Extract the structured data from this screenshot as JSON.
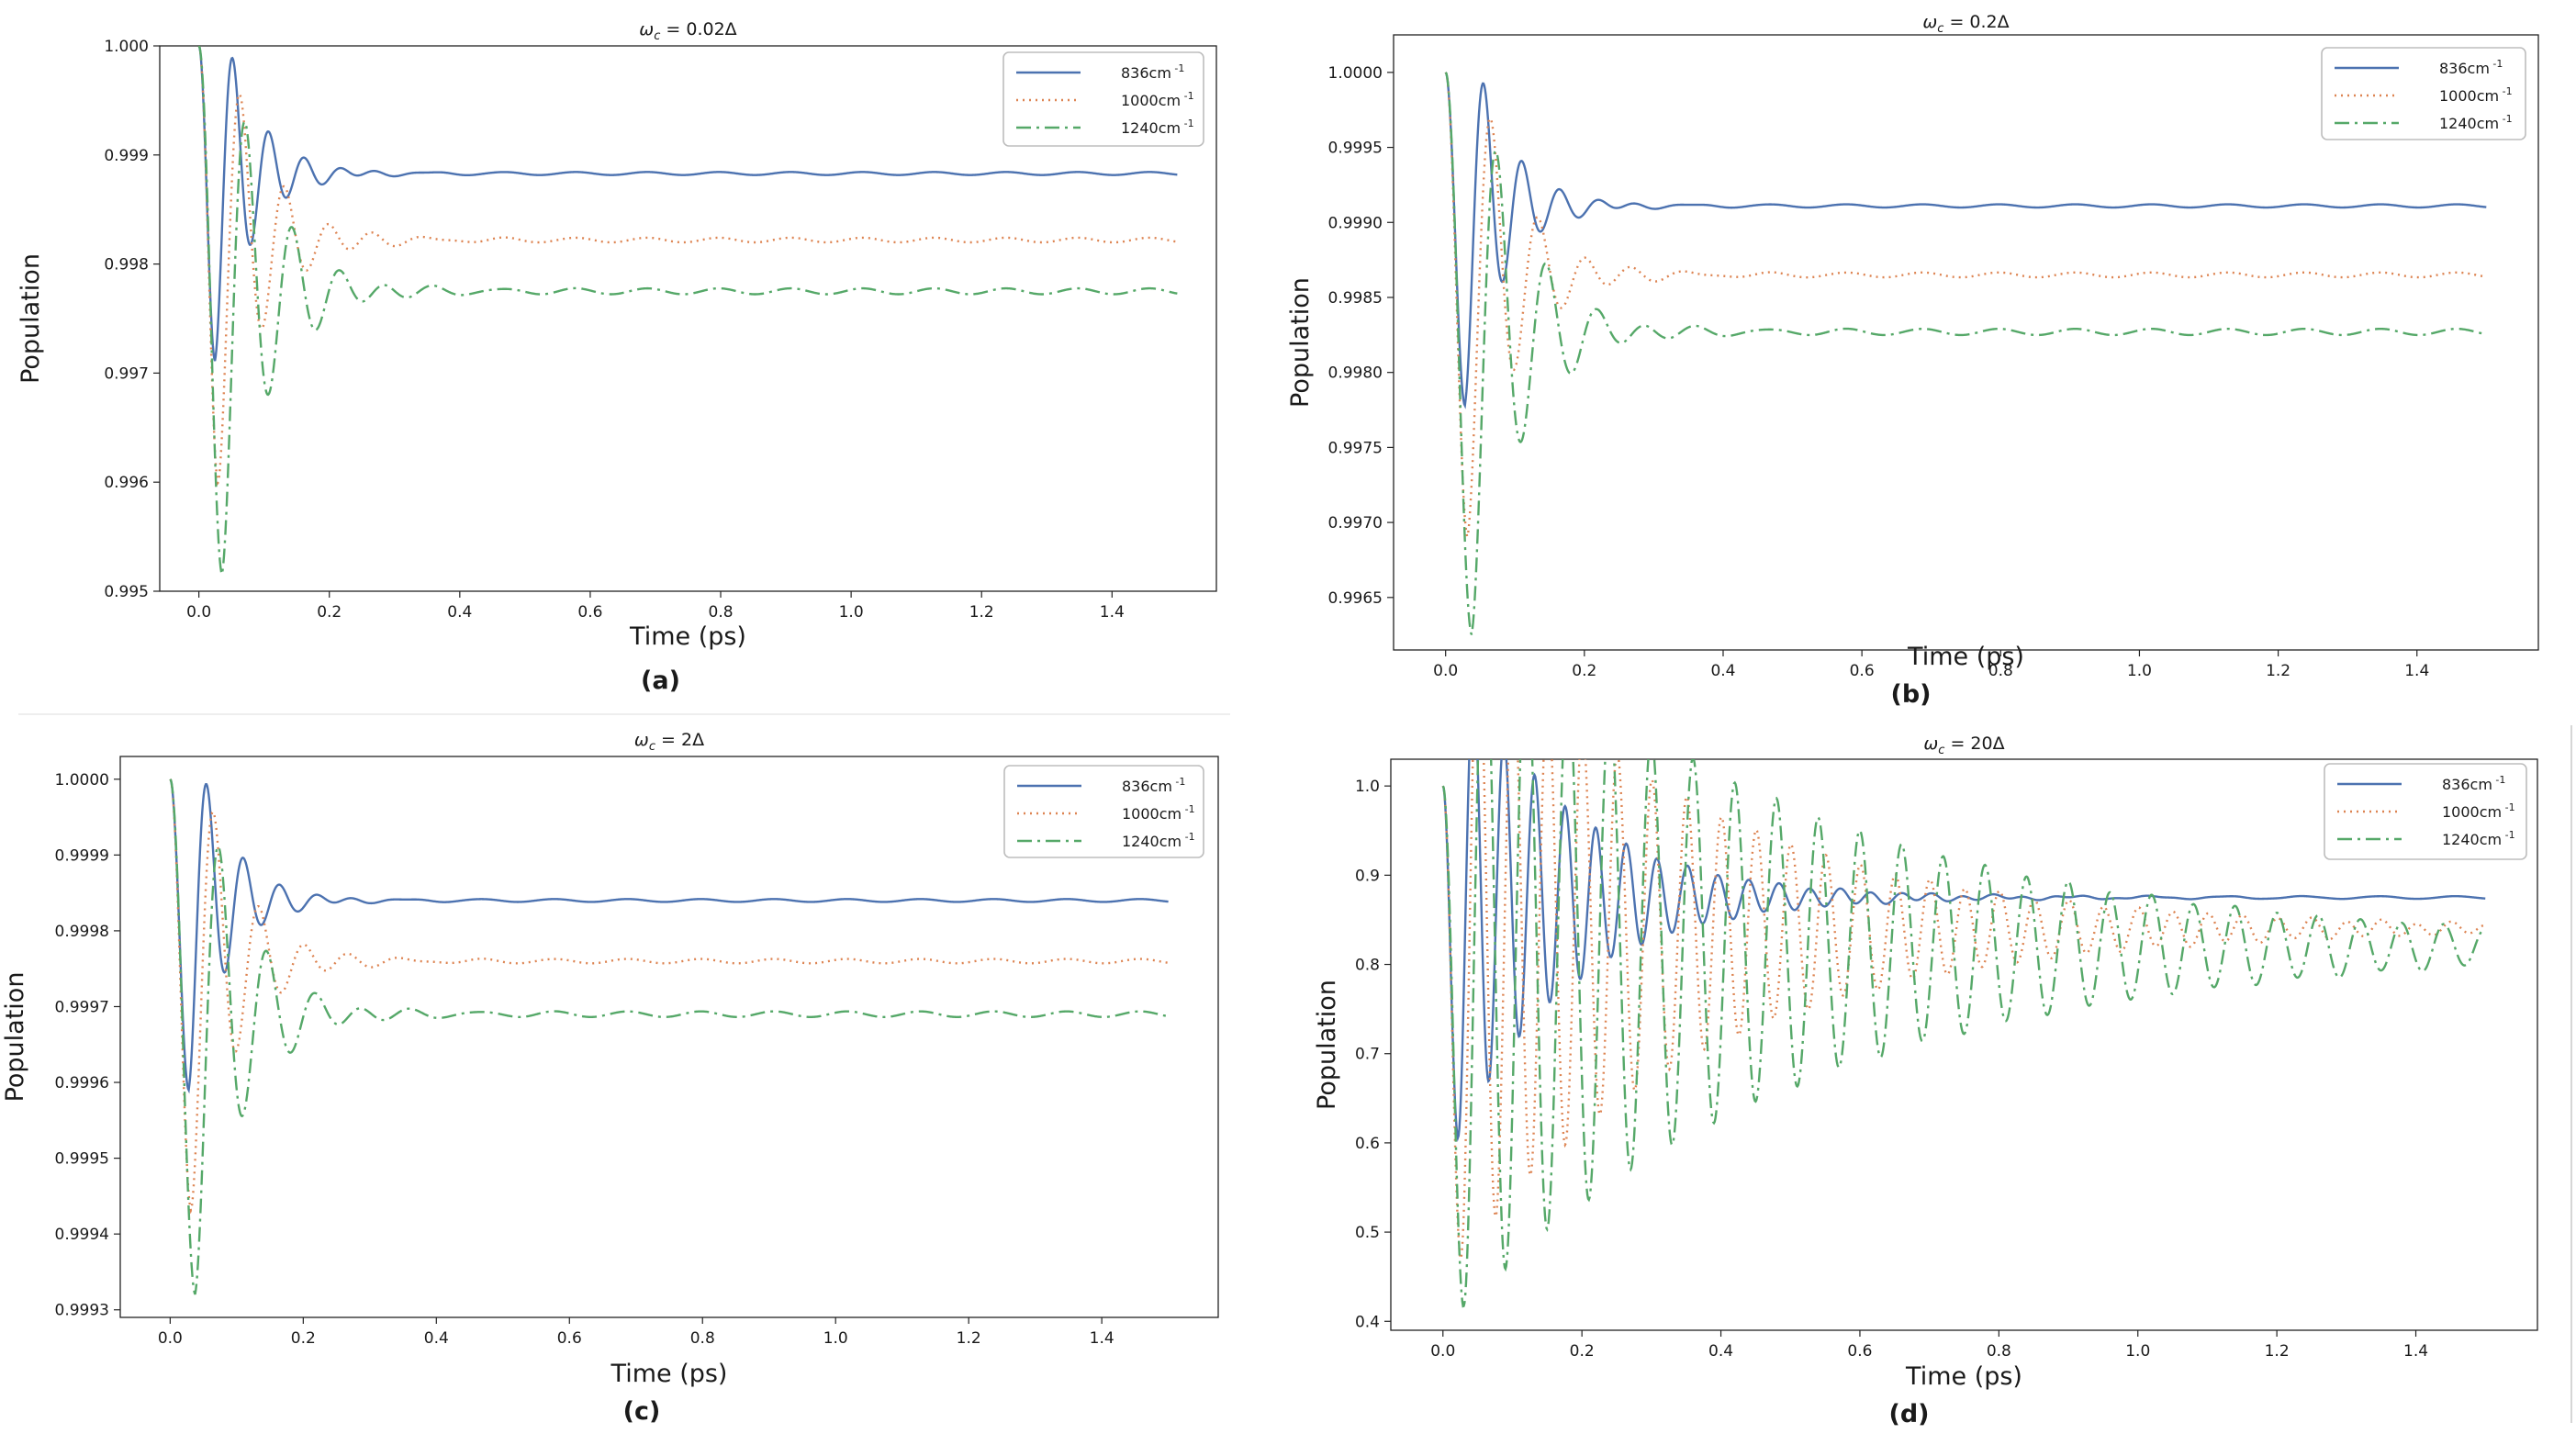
{
  "figure": {
    "panels": [
      {
        "id": "a",
        "title_symbol": "ω",
        "title_sub": "c",
        "title_value": " = 0.02Δ",
        "xlabel": "Time (ps)",
        "ylabel": "Population",
        "caption": "(a)"
      },
      {
        "id": "b",
        "title_symbol": "ω",
        "title_sub": "c",
        "title_value": " = 0.2Δ",
        "xlabel": "Time (ps)",
        "ylabel": "Population",
        "caption": "(b)"
      },
      {
        "id": "c",
        "title_symbol": "ω",
        "title_sub": "c",
        "title_value": " = 2Δ",
        "xlabel": "Time (ps)",
        "ylabel": "Population",
        "caption": "(c)"
      },
      {
        "id": "d",
        "title_symbol": "ω",
        "title_sub": "c",
        "title_value": " = 20Δ",
        "xlabel": "Time (ps)",
        "ylabel": "Population",
        "caption": "(d)"
      }
    ]
  },
  "chart_data": [
    {
      "type": "line",
      "title": "ωc = 0.02Δ",
      "xlabel": "Time (ps)",
      "ylabel": "Population",
      "xlim": [
        -0.06,
        1.56
      ],
      "ylim": [
        0.995,
        1.0
      ],
      "xticks": [
        0.0,
        0.2,
        0.4,
        0.6,
        0.8,
        1.0,
        1.2,
        1.4
      ],
      "xtick_labels": [
        "0.0",
        "0.2",
        "0.4",
        "0.6",
        "0.8",
        "1.0",
        "1.2",
        "1.4"
      ],
      "yticks": [
        0.995,
        0.996,
        0.997,
        0.998,
        0.999,
        1.0
      ],
      "ytick_labels": [
        "0.995",
        "0.996",
        "0.997",
        "0.998",
        "0.999",
        "1.000"
      ],
      "legend_position": "top-right",
      "series": [
        {
          "name": "836cm",
          "sup": " -1",
          "color": "#4c72b0",
          "dash": "",
          "steady": 0.99883,
          "min": 0.99711,
          "t_min": 0.025,
          "osc_period": 0.055,
          "decay": 0.055
        },
        {
          "name": "1000cm",
          "sup": " -1",
          "color": "#dd8452",
          "dash": "2,5",
          "steady": 0.99822,
          "min": 0.99598,
          "t_min": 0.03,
          "osc_period": 0.068,
          "decay": 0.065
        },
        {
          "name": "1240cm",
          "sup": " -1",
          "color": "#55a868",
          "dash": "16,6,3,6",
          "steady": 0.99775,
          "min": 0.99515,
          "t_min": 0.036,
          "osc_period": 0.072,
          "decay": 0.07
        }
      ]
    },
    {
      "type": "line",
      "title": "ωc = 0.2Δ",
      "xlabel": "Time (ps)",
      "ylabel": "Population",
      "xlim": [
        -0.075,
        1.575
      ],
      "ylim": [
        0.99615,
        1.00025
      ],
      "xticks": [
        0.0,
        0.2,
        0.4,
        0.6,
        0.8,
        1.0,
        1.2,
        1.4
      ],
      "xtick_labels": [
        "0.0",
        "0.2",
        "0.4",
        "0.6",
        "0.8",
        "1.0",
        "1.2",
        "1.4"
      ],
      "yticks": [
        0.9965,
        0.997,
        0.9975,
        0.998,
        0.9985,
        0.999,
        0.9995,
        1.0
      ],
      "ytick_labels": [
        "0.9965",
        "0.9970",
        "0.9975",
        "0.9980",
        "0.9985",
        "0.9990",
        "0.9995",
        "1.0000"
      ],
      "legend_position": "top-right",
      "series": [
        {
          "name": "836cm",
          "sup": " -1",
          "color": "#4c72b0",
          "dash": "",
          "steady": 0.99911,
          "min": 0.99778,
          "t_min": 0.028,
          "osc_period": 0.055,
          "decay": 0.055
        },
        {
          "name": "1000cm",
          "sup": " -1",
          "color": "#dd8452",
          "dash": "2,5",
          "steady": 0.99865,
          "min": 0.9969,
          "t_min": 0.032,
          "osc_period": 0.068,
          "decay": 0.065
        },
        {
          "name": "1240cm",
          "sup": " -1",
          "color": "#55a868",
          "dash": "16,6,3,6",
          "steady": 0.99827,
          "min": 0.99625,
          "t_min": 0.038,
          "osc_period": 0.072,
          "decay": 0.07
        }
      ]
    },
    {
      "type": "line",
      "title": "ωc = 2Δ",
      "xlabel": "Time (ps)",
      "ylabel": "Population",
      "xlim": [
        -0.075,
        1.575
      ],
      "ylim": [
        0.99929,
        1.00003
      ],
      "xticks": [
        0.0,
        0.2,
        0.4,
        0.6,
        0.8,
        1.0,
        1.2,
        1.4
      ],
      "xtick_labels": [
        "0.0",
        "0.2",
        "0.4",
        "0.6",
        "0.8",
        "1.0",
        "1.2",
        "1.4"
      ],
      "yticks": [
        0.9993,
        0.9994,
        0.9995,
        0.9996,
        0.9997,
        0.9998,
        0.9999,
        1.0
      ],
      "ytick_labels": [
        "0.9993",
        "0.9994",
        "0.9995",
        "0.9996",
        "0.9997",
        "0.9998",
        "0.9999",
        "1.0000"
      ],
      "legend_position": "top-right",
      "series": [
        {
          "name": "836cm",
          "sup": " -1",
          "color": "#4c72b0",
          "dash": "",
          "steady": 0.99984,
          "min": 0.99959,
          "t_min": 0.028,
          "osc_period": 0.055,
          "decay": 0.055
        },
        {
          "name": "1000cm",
          "sup": " -1",
          "color": "#dd8452",
          "dash": "2,5",
          "steady": 0.99976,
          "min": 0.99943,
          "t_min": 0.032,
          "osc_period": 0.068,
          "decay": 0.065
        },
        {
          "name": "1240cm",
          "sup": " -1",
          "color": "#55a868",
          "dash": "16,6,3,6",
          "steady": 0.99969,
          "min": 0.99932,
          "t_min": 0.038,
          "osc_period": 0.072,
          "decay": 0.07
        }
      ]
    },
    {
      "type": "line",
      "title": "ωc = 20Δ",
      "xlabel": "Time (ps)",
      "ylabel": "Population",
      "xlim": [
        -0.075,
        1.575
      ],
      "ylim": [
        0.39,
        1.03
      ],
      "xticks": [
        0.0,
        0.2,
        0.4,
        0.6,
        0.8,
        1.0,
        1.2,
        1.4
      ],
      "xtick_labels": [
        "0.0",
        "0.2",
        "0.4",
        "0.6",
        "0.8",
        "1.0",
        "1.2",
        "1.4"
      ],
      "yticks": [
        0.4,
        0.5,
        0.6,
        0.7,
        0.8,
        0.9,
        1.0
      ],
      "ytick_labels": [
        "0.4",
        "0.5",
        "0.6",
        "0.7",
        "0.8",
        "0.9",
        "1.0"
      ],
      "legend_position": "top-right",
      "series": [
        {
          "name": "836cm",
          "sup": " -1",
          "color": "#4c72b0",
          "dash": "",
          "steady": 0.875,
          "min": 0.605,
          "t_min": 0.022,
          "osc_period": 0.044,
          "decay": 0.16
        },
        {
          "name": "1000cm",
          "sup": " -1",
          "color": "#dd8452",
          "dash": "2,5",
          "steady": 0.84,
          "min": 0.47,
          "t_min": 0.026,
          "osc_period": 0.05,
          "decay": 0.35
        },
        {
          "name": "1240cm",
          "sup": " -1",
          "color": "#55a868",
          "dash": "16,6,3,6",
          "steady": 0.82,
          "min": 0.415,
          "t_min": 0.03,
          "osc_period": 0.06,
          "decay": 0.5
        }
      ]
    }
  ]
}
